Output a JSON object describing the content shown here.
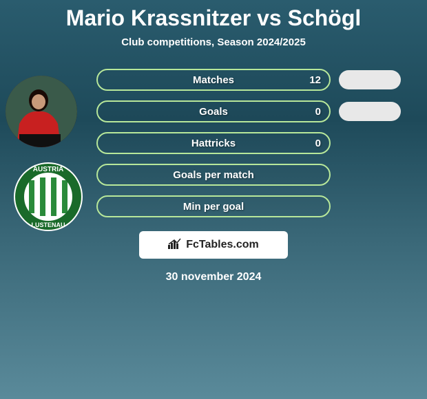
{
  "title": "Mario Krassnitzer vs Schögl",
  "subtitle": "Club competitions, Season 2024/2025",
  "stats": [
    {
      "label": "Matches",
      "value": "12",
      "show_pill": true
    },
    {
      "label": "Goals",
      "value": "0",
      "show_pill": true
    },
    {
      "label": "Hattricks",
      "value": "0",
      "show_pill": false
    },
    {
      "label": "Goals per match",
      "value": "",
      "show_pill": false
    },
    {
      "label": "Min per goal",
      "value": "",
      "show_pill": false
    }
  ],
  "logo_text": "FcTables.com",
  "date": "30 november 2024",
  "colors": {
    "border": "#b8e89a",
    "pill_bg": "#e8e8e8",
    "logo_bg": "#ffffff",
    "text": "#ffffff"
  },
  "club": {
    "name": "AUSTRIA LUSTENAU",
    "stripe_colors": [
      "#2a8a3a",
      "#ffffff"
    ],
    "ring_color": "#1a6a2a",
    "text_color": "#ffffff"
  }
}
